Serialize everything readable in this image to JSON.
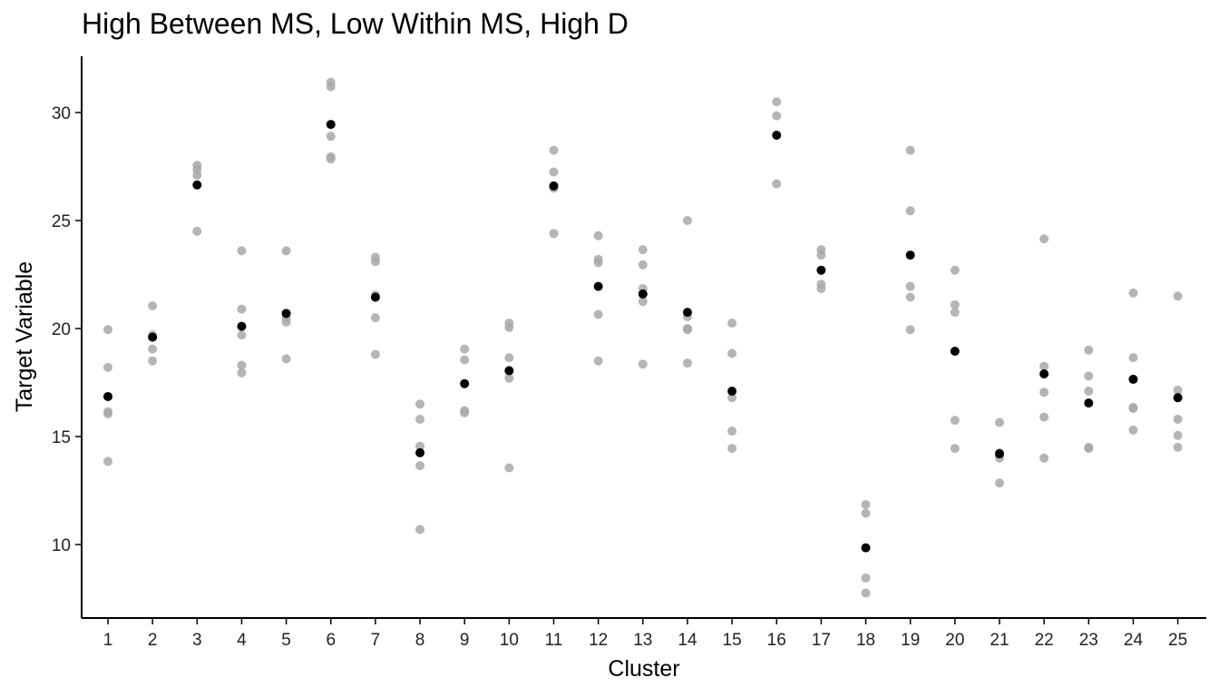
{
  "chart_data": {
    "type": "scatter",
    "title": "High Between MS, Low Within MS, High D",
    "xlabel": "Cluster",
    "ylabel": "Target Variable",
    "categories": [
      "1",
      "2",
      "3",
      "4",
      "5",
      "6",
      "7",
      "8",
      "9",
      "10",
      "11",
      "12",
      "13",
      "14",
      "15",
      "16",
      "17",
      "18",
      "19",
      "20",
      "21",
      "22",
      "23",
      "24",
      "25"
    ],
    "yticks": [
      10,
      15,
      20,
      25,
      30
    ],
    "ylim": [
      6.5,
      32.5
    ],
    "grid": false,
    "legend": "none",
    "colors": {
      "observation": "#a8a8a8",
      "mean": "#000000",
      "axis": "#000000"
    },
    "series": [
      {
        "role": "observations",
        "points": [
          {
            "x": "1",
            "y": [
              19.95,
              18.2,
              16.15,
              16.05,
              13.85
            ]
          },
          {
            "x": "2",
            "y": [
              21.05,
              19.7,
              19.05,
              18.5
            ]
          },
          {
            "x": "3",
            "y": [
              27.55,
              27.35,
              27.1,
              24.5
            ]
          },
          {
            "x": "4",
            "y": [
              23.6,
              20.9,
              19.7,
              18.3,
              17.95
            ]
          },
          {
            "x": "5",
            "y": [
              23.6,
              20.5,
              20.3,
              18.6
            ]
          },
          {
            "x": "6",
            "y": [
              31.4,
              31.2,
              28.9,
              27.95,
              27.85
            ]
          },
          {
            "x": "7",
            "y": [
              23.3,
              23.1,
              21.55,
              20.5,
              18.8
            ]
          },
          {
            "x": "8",
            "y": [
              16.5,
              15.8,
              14.55,
              13.65,
              10.7
            ]
          },
          {
            "x": "9",
            "y": [
              19.05,
              18.55,
              16.2,
              16.1
            ]
          },
          {
            "x": "10",
            "y": [
              20.25,
              20.05,
              18.65,
              17.7,
              13.55
            ]
          },
          {
            "x": "11",
            "y": [
              28.25,
              27.25,
              26.6,
              26.5,
              24.4
            ]
          },
          {
            "x": "12",
            "y": [
              24.3,
              23.2,
              23.05,
              20.65,
              18.5
            ]
          },
          {
            "x": "13",
            "y": [
              23.65,
              22.95,
              21.85,
              21.25,
              18.35
            ]
          },
          {
            "x": "14",
            "y": [
              25.0,
              20.55,
              20.0,
              19.95,
              18.4
            ]
          },
          {
            "x": "15",
            "y": [
              20.25,
              18.85,
              16.8,
              15.25,
              14.45
            ]
          },
          {
            "x": "16",
            "y": [
              30.5,
              29.85,
              26.7
            ]
          },
          {
            "x": "17",
            "y": [
              23.65,
              23.4,
              22.05,
              21.85
            ]
          },
          {
            "x": "18",
            "y": [
              11.85,
              11.45,
              8.45,
              7.75
            ]
          },
          {
            "x": "19",
            "y": [
              28.25,
              25.45,
              21.95,
              21.45,
              19.95
            ]
          },
          {
            "x": "20",
            "y": [
              22.7,
              21.1,
              20.75,
              15.75,
              14.45
            ]
          },
          {
            "x": "21",
            "y": [
              15.65,
              14.25,
              14.0,
              12.85
            ]
          },
          {
            "x": "22",
            "y": [
              24.15,
              18.25,
              17.05,
              15.9,
              14.0
            ]
          },
          {
            "x": "23",
            "y": [
              19.0,
              17.8,
              17.1,
              14.5,
              14.45
            ]
          },
          {
            "x": "24",
            "y": [
              21.65,
              18.65,
              16.35,
              16.3,
              15.3
            ]
          },
          {
            "x": "25",
            "y": [
              21.5,
              17.15,
              15.8,
              15.05,
              14.5
            ]
          }
        ]
      },
      {
        "role": "cluster-mean",
        "values": [
          16.85,
          19.6,
          26.65,
          20.1,
          20.7,
          29.45,
          21.45,
          14.25,
          17.45,
          18.05,
          26.6,
          21.95,
          21.6,
          20.75,
          17.1,
          28.95,
          22.7,
          9.85,
          23.4,
          18.95,
          14.2,
          17.9,
          16.55,
          17.65,
          16.8
        ]
      }
    ]
  }
}
